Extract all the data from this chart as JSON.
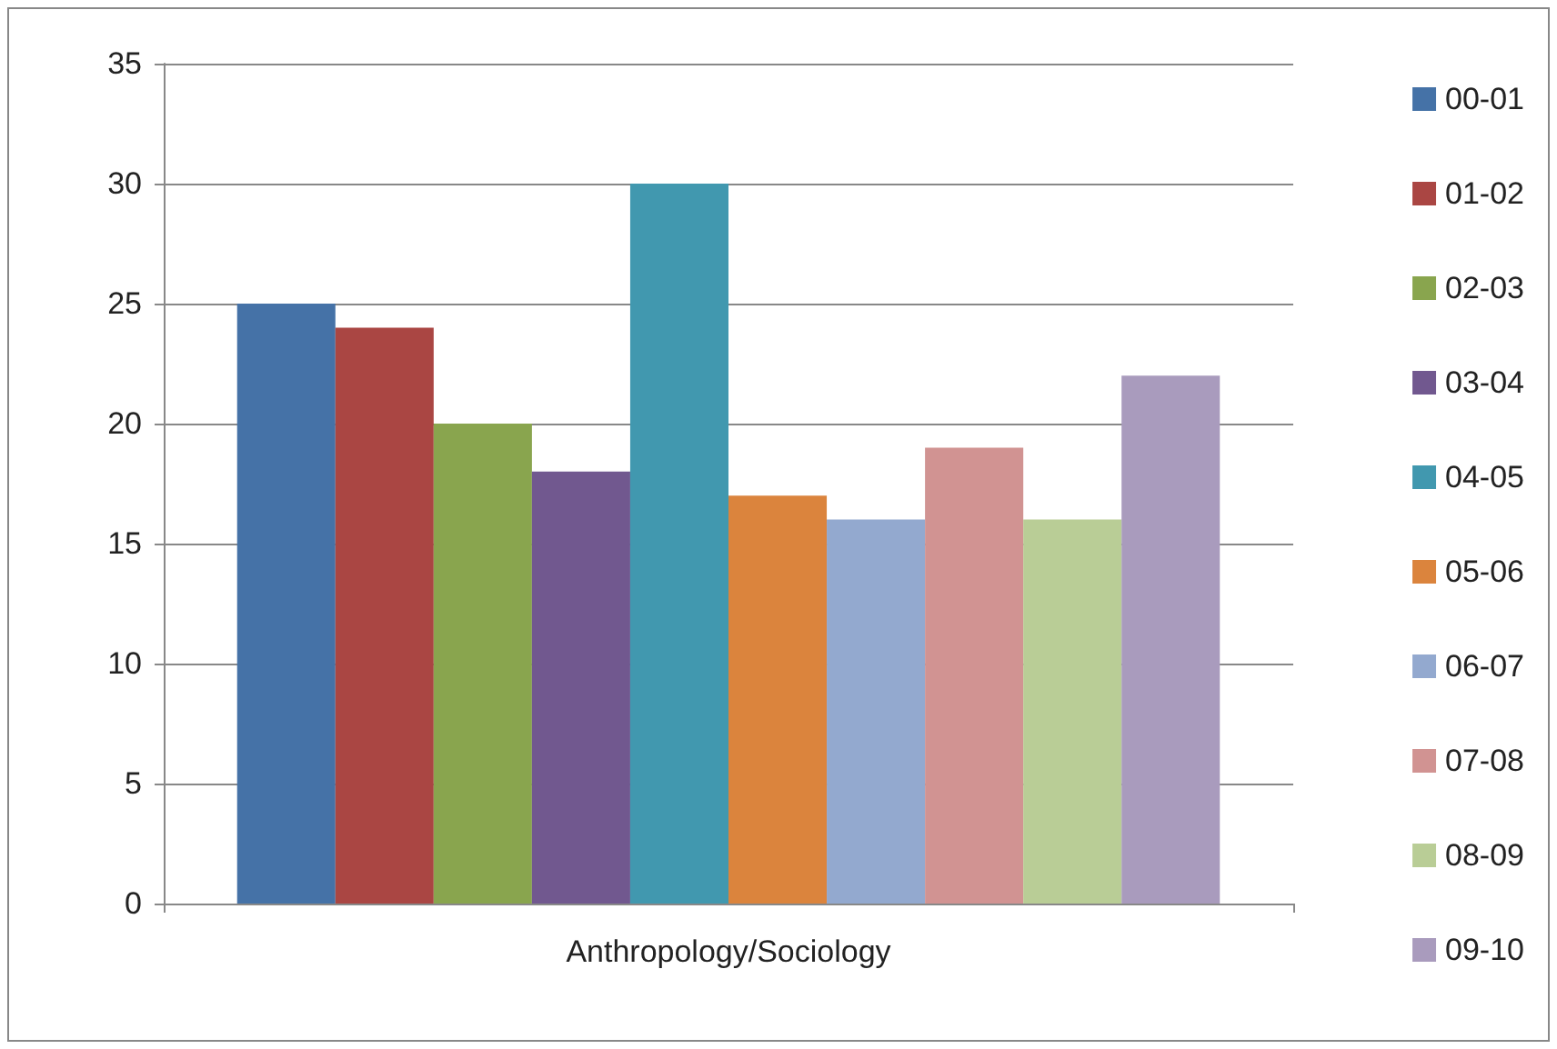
{
  "chart_data": {
    "type": "bar",
    "categories": [
      "Anthropology/Sociology"
    ],
    "series": [
      {
        "name": "00-01",
        "color": "#4572a7",
        "values": [
          25
        ]
      },
      {
        "name": "01-02",
        "color": "#aa4643",
        "values": [
          24
        ]
      },
      {
        "name": "02-03",
        "color": "#89a54e",
        "values": [
          20
        ]
      },
      {
        "name": "03-04",
        "color": "#71588f",
        "values": [
          18
        ]
      },
      {
        "name": "04-05",
        "color": "#4198af",
        "values": [
          30
        ]
      },
      {
        "name": "05-06",
        "color": "#db843d",
        "values": [
          17
        ]
      },
      {
        "name": "06-07",
        "color": "#93a9cf",
        "values": [
          16
        ]
      },
      {
        "name": "07-08",
        "color": "#d19392",
        "values": [
          19
        ]
      },
      {
        "name": "08-09",
        "color": "#b9cd96",
        "values": [
          16
        ]
      },
      {
        "name": "09-10",
        "color": "#a99bbd",
        "values": [
          22
        ]
      }
    ],
    "ylim": [
      0,
      35
    ],
    "yticks": [
      0,
      5,
      10,
      15,
      20,
      25,
      30,
      35
    ],
    "grid": "y",
    "legend": "right"
  }
}
